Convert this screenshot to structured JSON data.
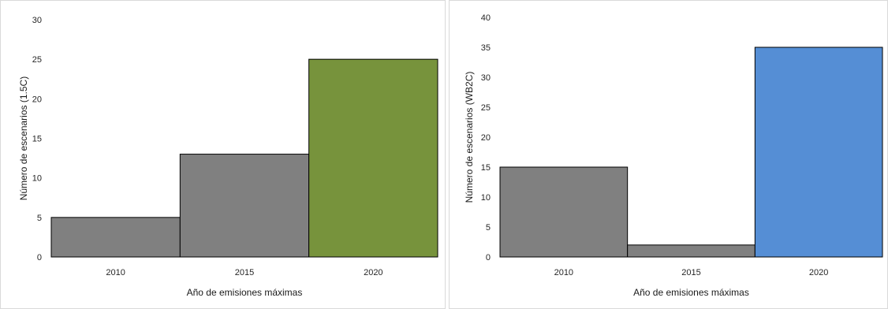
{
  "chart_data": [
    {
      "type": "bar",
      "categories": [
        "2010",
        "2015",
        "2020"
      ],
      "values": [
        5,
        13,
        25
      ],
      "bar_colors": [
        "#808080",
        "#808080",
        "#77933c"
      ],
      "title": "",
      "xlabel": "Año de emisiones máximas",
      "ylabel": "Número de escenarios (1.5C)",
      "ylim": [
        0,
        30
      ],
      "yticks": [
        0,
        5,
        10,
        15,
        20,
        25,
        30
      ],
      "grid": false,
      "legend": "none"
    },
    {
      "type": "bar",
      "categories": [
        "2010",
        "2015",
        "2020"
      ],
      "values": [
        15,
        2,
        35
      ],
      "bar_colors": [
        "#808080",
        "#808080",
        "#558ed5"
      ],
      "title": "",
      "xlabel": "Año de emisiones máximas",
      "ylabel": "Número de escenarios (WB2C)",
      "ylim": [
        0,
        40
      ],
      "yticks": [
        0,
        5,
        10,
        15,
        20,
        25,
        30,
        35,
        40
      ],
      "grid": false,
      "legend": "none"
    }
  ]
}
